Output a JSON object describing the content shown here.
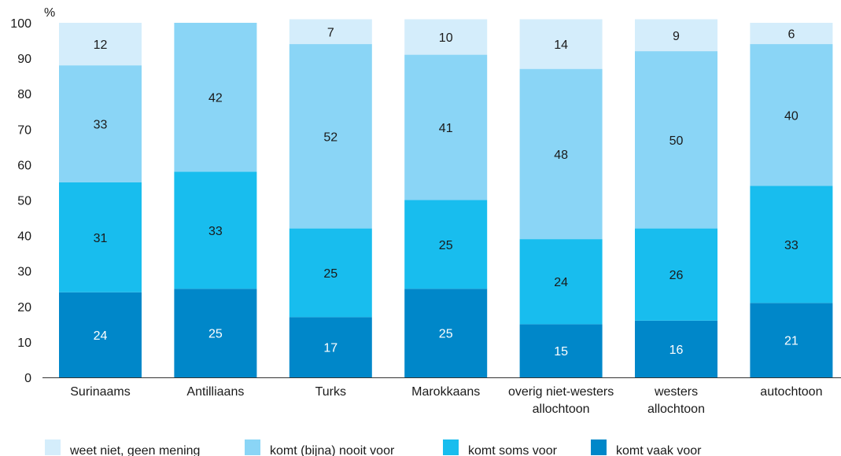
{
  "chart_data": {
    "type": "bar",
    "stacked": true,
    "ylabel": "%",
    "ylim": [
      0,
      100
    ],
    "yticks": [
      0,
      10,
      20,
      30,
      40,
      50,
      60,
      70,
      80,
      90,
      100
    ],
    "grid": false,
    "legend_position": "bottom",
    "categories": [
      [
        "Surinaams"
      ],
      [
        "Antilliaans"
      ],
      [
        "Turks"
      ],
      [
        "Marokkaans"
      ],
      [
        "overig niet-westers",
        "allochtoon"
      ],
      [
        "westers",
        "allochtoon"
      ],
      [
        "autochtoon"
      ]
    ],
    "series": [
      {
        "name": "komt vaak voor",
        "color": "#0087c9",
        "label_color": "#ffffff",
        "values": [
          24,
          25,
          17,
          25,
          15,
          16,
          21
        ]
      },
      {
        "name": "komt soms voor",
        "color": "#18bdee",
        "label_color": "#1a1a1a",
        "values": [
          31,
          33,
          25,
          25,
          24,
          26,
          33
        ]
      },
      {
        "name": "komt (bijna) nooit voor",
        "color": "#8ad5f6",
        "label_color": "#1a1a1a",
        "values": [
          33,
          42,
          52,
          41,
          48,
          50,
          40
        ]
      },
      {
        "name": "weet niet, geen mening",
        "color": "#d4edfb",
        "label_color": "#1a1a1a",
        "values": [
          12,
          null,
          7,
          10,
          14,
          9,
          6
        ]
      }
    ],
    "legend_order": [
      "weet niet, geen mening",
      "komt (bijna) nooit voor",
      "komt soms voor",
      "komt vaak voor"
    ]
  }
}
